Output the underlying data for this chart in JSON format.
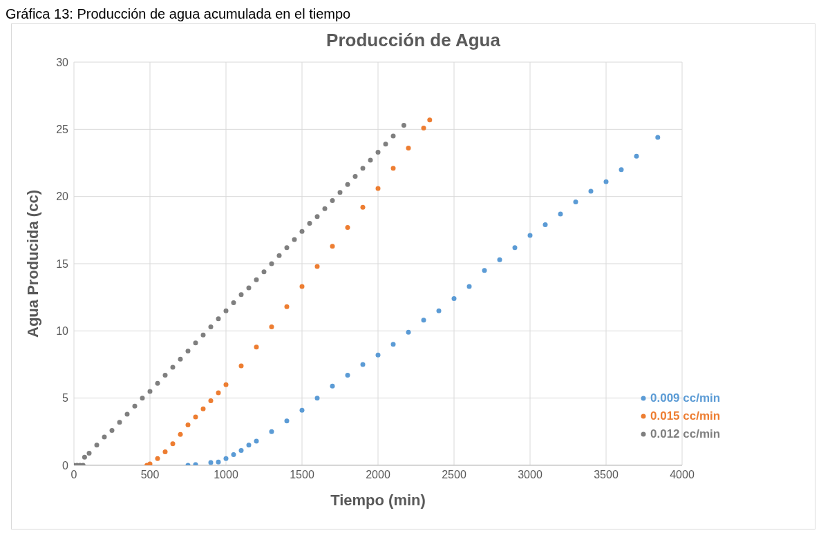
{
  "chart_data": {
    "type": "scatter",
    "title": "Producción de Agua",
    "annotations": [
      "Gráfica 13: Producción de agua acumulada en el tiempo"
    ],
    "xlabel": "Tiempo (min)",
    "ylabel": "Agua Producida (cc)",
    "xlim": [
      0,
      4000
    ],
    "xticks": [
      0,
      500,
      1000,
      1500,
      2000,
      2500,
      3000,
      3500,
      4000
    ],
    "ylim": [
      0,
      30
    ],
    "yticks": [
      0,
      5,
      10,
      15,
      20,
      25,
      30
    ],
    "grid": true,
    "legend": "bottom right",
    "marker": "circle",
    "series": [
      {
        "name": "0.009 cc/min",
        "color": "#5b9bd5",
        "x": [
          750,
          800,
          900,
          950,
          1000,
          1050,
          1100,
          1150,
          1200,
          1300,
          1400,
          1500,
          1600,
          1700,
          1800,
          1900,
          2000,
          2100,
          2200,
          2300,
          2400,
          2500,
          2600,
          2700,
          2800,
          2900,
          3000,
          3100,
          3200,
          3300,
          3400,
          3500,
          3600,
          3700,
          3840
        ],
        "values": [
          0,
          0.05,
          0.2,
          0.25,
          0.5,
          0.8,
          1.1,
          1.5,
          1.8,
          2.5,
          3.3,
          4.1,
          5,
          5.9,
          6.7,
          7.5,
          8.2,
          9,
          9.9,
          10.8,
          11.5,
          12.4,
          13.3,
          14.5,
          15.3,
          16.2,
          17.1,
          17.9,
          18.7,
          19.6,
          20.4,
          21.1,
          22,
          23,
          24.4
        ]
      },
      {
        "name": "0.015 cc/min",
        "color": "#ed7d31",
        "x": [
          480,
          500,
          550,
          600,
          650,
          700,
          750,
          800,
          850,
          900,
          950,
          1000,
          1100,
          1200,
          1300,
          1400,
          1500,
          1600,
          1700,
          1800,
          1900,
          2000,
          2100,
          2200,
          2300,
          2340
        ],
        "values": [
          0,
          0.1,
          0.5,
          1,
          1.6,
          2.3,
          3,
          3.6,
          4.2,
          4.8,
          5.4,
          6,
          7.4,
          8.8,
          10.3,
          11.8,
          13.3,
          14.8,
          16.3,
          17.7,
          19.2,
          20.6,
          22.1,
          23.6,
          25.1,
          25.7
        ]
      },
      {
        "name": "0.012 cc/min",
        "color": "#7f7f7f",
        "x": [
          0,
          20,
          40,
          60,
          70,
          100,
          150,
          200,
          250,
          300,
          350,
          400,
          450,
          500,
          550,
          600,
          650,
          700,
          750,
          800,
          850,
          900,
          950,
          1000,
          1050,
          1100,
          1150,
          1200,
          1250,
          1300,
          1350,
          1400,
          1450,
          1500,
          1550,
          1600,
          1650,
          1700,
          1750,
          1800,
          1850,
          1900,
          1950,
          2000,
          2050,
          2100,
          2170
        ],
        "values": [
          0,
          0,
          0,
          0,
          0.6,
          0.9,
          1.5,
          2.1,
          2.6,
          3.2,
          3.8,
          4.4,
          5,
          5.5,
          6.1,
          6.7,
          7.3,
          7.9,
          8.5,
          9.1,
          9.7,
          10.3,
          10.9,
          11.5,
          12.1,
          12.7,
          13.2,
          13.8,
          14.4,
          15,
          15.6,
          16.2,
          16.8,
          17.4,
          18,
          18.5,
          19.1,
          19.7,
          20.3,
          20.9,
          21.5,
          22.1,
          22.7,
          23.3,
          23.9,
          24.5,
          25.3
        ]
      }
    ]
  }
}
